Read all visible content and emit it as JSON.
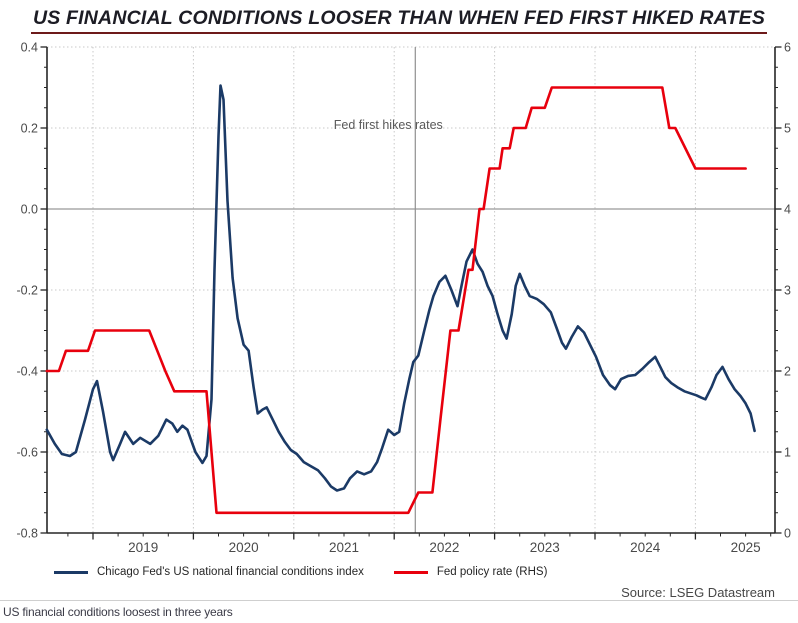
{
  "page": {
    "title": "US FINANCIAL CONDITIONS LOOSER THAN WHEN FED FIRST HIKED RATES",
    "source": "Source: LSEG Datastream",
    "footer_note": "US financial conditions loosest in three years"
  },
  "legend": {
    "items": [
      {
        "label": "Chicago Fed's US national financial conditions index",
        "color": "#1b3a66"
      },
      {
        "label": "Fed policy rate (RHS)",
        "color": "#e8000d"
      }
    ]
  },
  "chart_data": {
    "type": "line",
    "title": "US FINANCIAL CONDITIONS LOOSER THAN WHEN FED FIRST HIKED RATES",
    "annotation": {
      "label": "Fed first hikes rates",
      "x": 2022.21
    },
    "x_axis": {
      "range": [
        2018.54,
        2025.79
      ],
      "year_ticks": [
        2019,
        2020,
        2021,
        2022,
        2023,
        2024,
        2025
      ],
      "year_labels": [
        "2019",
        "2020",
        "2021",
        "2022",
        "2023",
        "2024",
        "2025"
      ],
      "minor_step": 0.25
    },
    "left_axis": {
      "label": "",
      "range": [
        -0.8,
        0.4
      ],
      "tick_values": [
        0.4,
        0.2,
        0,
        -0.2,
        -0.4,
        -0.6,
        -0.8
      ],
      "tick_labels": [
        "0.4",
        "0.2",
        "0.0",
        "-0.2",
        "-0.4",
        "-0.6",
        "-0.8"
      ],
      "minor_step": 0.05
    },
    "right_axis": {
      "label": "",
      "range": [
        0,
        6
      ],
      "tick_values": [
        6,
        5,
        4,
        3,
        2,
        1,
        0
      ],
      "tick_labels": [
        "6",
        "5",
        "4",
        "3",
        "2",
        "1",
        "0"
      ],
      "minor_step": 0.25
    },
    "grid": true,
    "zero_line_left_value": 0.0,
    "colors": {
      "grid": "#c9c9c9",
      "zero_line": "#999999",
      "annotation_line": "#8f8f8f",
      "annotation_text": "#595959",
      "axis": "#262626",
      "tick_label": "#4a4a4a"
    },
    "series": [
      {
        "name": "Chicago Fed's US national financial conditions index",
        "axis": "left",
        "color": "#1b3a66",
        "points": [
          [
            2018.54,
            -0.545
          ],
          [
            2018.62,
            -0.58
          ],
          [
            2018.69,
            -0.605
          ],
          [
            2018.77,
            -0.61
          ],
          [
            2018.83,
            -0.6
          ],
          [
            2018.92,
            -0.52
          ],
          [
            2019.0,
            -0.445
          ],
          [
            2019.04,
            -0.425
          ],
          [
            2019.1,
            -0.5
          ],
          [
            2019.17,
            -0.6
          ],
          [
            2019.2,
            -0.62
          ],
          [
            2019.27,
            -0.58
          ],
          [
            2019.32,
            -0.55
          ],
          [
            2019.4,
            -0.58
          ],
          [
            2019.47,
            -0.565
          ],
          [
            2019.57,
            -0.58
          ],
          [
            2019.65,
            -0.56
          ],
          [
            2019.73,
            -0.52
          ],
          [
            2019.79,
            -0.53
          ],
          [
            2019.84,
            -0.55
          ],
          [
            2019.89,
            -0.535
          ],
          [
            2019.94,
            -0.545
          ],
          [
            2020.02,
            -0.6
          ],
          [
            2020.09,
            -0.627
          ],
          [
            2020.13,
            -0.61
          ],
          [
            2020.18,
            -0.47
          ],
          [
            2020.21,
            -0.15
          ],
          [
            2020.25,
            0.18
          ],
          [
            2020.27,
            0.305
          ],
          [
            2020.3,
            0.27
          ],
          [
            2020.34,
            0.02
          ],
          [
            2020.39,
            -0.17
          ],
          [
            2020.44,
            -0.27
          ],
          [
            2020.5,
            -0.335
          ],
          [
            2020.55,
            -0.35
          ],
          [
            2020.6,
            -0.44
          ],
          [
            2020.64,
            -0.505
          ],
          [
            2020.69,
            -0.495
          ],
          [
            2020.73,
            -0.49
          ],
          [
            2020.79,
            -0.52
          ],
          [
            2020.85,
            -0.55
          ],
          [
            2020.91,
            -0.575
          ],
          [
            2020.97,
            -0.595
          ],
          [
            2021.03,
            -0.605
          ],
          [
            2021.1,
            -0.625
          ],
          [
            2021.17,
            -0.635
          ],
          [
            2021.24,
            -0.645
          ],
          [
            2021.31,
            -0.665
          ],
          [
            2021.37,
            -0.685
          ],
          [
            2021.43,
            -0.695
          ],
          [
            2021.5,
            -0.69
          ],
          [
            2021.56,
            -0.665
          ],
          [
            2021.63,
            -0.648
          ],
          [
            2021.7,
            -0.655
          ],
          [
            2021.77,
            -0.648
          ],
          [
            2021.83,
            -0.625
          ],
          [
            2021.88,
            -0.59
          ],
          [
            2021.94,
            -0.545
          ],
          [
            2022.0,
            -0.558
          ],
          [
            2022.05,
            -0.55
          ],
          [
            2022.1,
            -0.48
          ],
          [
            2022.15,
            -0.42
          ],
          [
            2022.19,
            -0.378
          ],
          [
            2022.24,
            -0.362
          ],
          [
            2022.3,
            -0.3
          ],
          [
            2022.35,
            -0.25
          ],
          [
            2022.39,
            -0.215
          ],
          [
            2022.45,
            -0.18
          ],
          [
            2022.51,
            -0.165
          ],
          [
            2022.57,
            -0.2
          ],
          [
            2022.63,
            -0.24
          ],
          [
            2022.67,
            -0.19
          ],
          [
            2022.72,
            -0.13
          ],
          [
            2022.78,
            -0.1
          ],
          [
            2022.83,
            -0.135
          ],
          [
            2022.88,
            -0.155
          ],
          [
            2022.93,
            -0.19
          ],
          [
            2022.98,
            -0.215
          ],
          [
            2023.03,
            -0.26
          ],
          [
            2023.08,
            -0.3
          ],
          [
            2023.12,
            -0.32
          ],
          [
            2023.17,
            -0.26
          ],
          [
            2023.21,
            -0.19
          ],
          [
            2023.25,
            -0.16
          ],
          [
            2023.3,
            -0.19
          ],
          [
            2023.35,
            -0.215
          ],
          [
            2023.42,
            -0.222
          ],
          [
            2023.49,
            -0.235
          ],
          [
            2023.56,
            -0.255
          ],
          [
            2023.62,
            -0.295
          ],
          [
            2023.67,
            -0.33
          ],
          [
            2023.71,
            -0.345
          ],
          [
            2023.77,
            -0.315
          ],
          [
            2023.83,
            -0.29
          ],
          [
            2023.89,
            -0.305
          ],
          [
            2023.95,
            -0.335
          ],
          [
            2024.01,
            -0.365
          ],
          [
            2024.08,
            -0.41
          ],
          [
            2024.15,
            -0.435
          ],
          [
            2024.2,
            -0.445
          ],
          [
            2024.26,
            -0.42
          ],
          [
            2024.33,
            -0.412
          ],
          [
            2024.4,
            -0.41
          ],
          [
            2024.47,
            -0.395
          ],
          [
            2024.54,
            -0.378
          ],
          [
            2024.6,
            -0.365
          ],
          [
            2024.65,
            -0.39
          ],
          [
            2024.7,
            -0.415
          ],
          [
            2024.76,
            -0.43
          ],
          [
            2024.82,
            -0.44
          ],
          [
            2024.89,
            -0.45
          ],
          [
            2024.95,
            -0.455
          ],
          [
            2025.01,
            -0.46
          ],
          [
            2025.06,
            -0.466
          ],
          [
            2025.1,
            -0.47
          ],
          [
            2025.16,
            -0.44
          ],
          [
            2025.21,
            -0.41
          ],
          [
            2025.27,
            -0.39
          ],
          [
            2025.33,
            -0.42
          ],
          [
            2025.39,
            -0.445
          ],
          [
            2025.45,
            -0.462
          ],
          [
            2025.5,
            -0.48
          ],
          [
            2025.55,
            -0.505
          ],
          [
            2025.59,
            -0.548
          ]
        ]
      },
      {
        "name": "Fed policy rate (RHS)",
        "axis": "right",
        "color": "#e8000d",
        "points": [
          [
            2018.54,
            2.0
          ],
          [
            2018.66,
            2.0
          ],
          [
            2018.73,
            2.25
          ],
          [
            2018.95,
            2.25
          ],
          [
            2019.02,
            2.5
          ],
          [
            2019.56,
            2.5
          ],
          [
            2019.64,
            2.25
          ],
          [
            2019.72,
            2.0
          ],
          [
            2019.81,
            1.75
          ],
          [
            2020.13,
            1.75
          ],
          [
            2020.23,
            0.25
          ],
          [
            2022.14,
            0.25
          ],
          [
            2022.24,
            0.5
          ],
          [
            2022.38,
            0.5
          ],
          [
            2022.46,
            1.4
          ],
          [
            2022.56,
            2.5
          ],
          [
            2022.64,
            2.5
          ],
          [
            2022.74,
            3.25
          ],
          [
            2022.78,
            3.25
          ],
          [
            2022.85,
            4.0
          ],
          [
            2022.89,
            4.0
          ],
          [
            2022.95,
            4.5
          ],
          [
            2023.05,
            4.5
          ],
          [
            2023.08,
            4.75
          ],
          [
            2023.15,
            4.75
          ],
          [
            2023.19,
            5.0
          ],
          [
            2023.31,
            5.0
          ],
          [
            2023.37,
            5.25
          ],
          [
            2023.5,
            5.25
          ],
          [
            2023.57,
            5.5
          ],
          [
            2024.67,
            5.5
          ],
          [
            2024.74,
            5.0
          ],
          [
            2024.8,
            5.0
          ],
          [
            2025.0,
            4.5
          ],
          [
            2025.5,
            4.5
          ]
        ]
      }
    ]
  }
}
